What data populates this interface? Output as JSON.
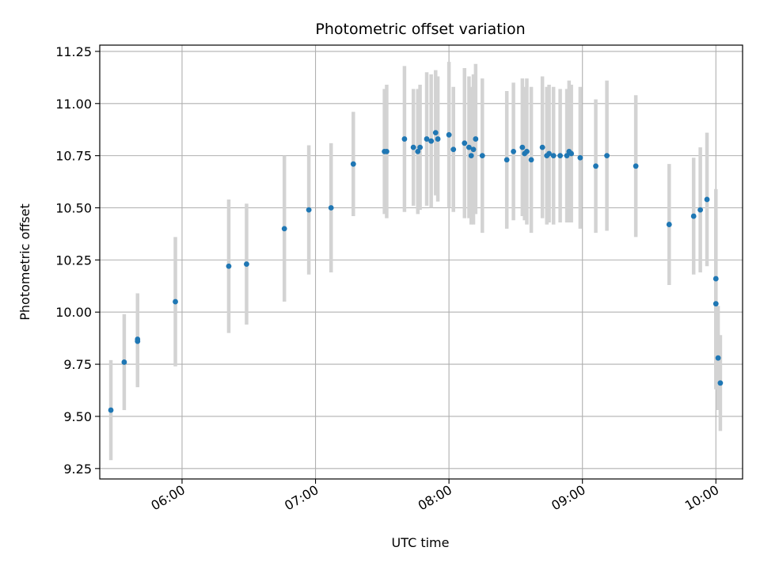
{
  "chart_data": {
    "type": "scatter",
    "title": "Photometric offset variation",
    "xlabel": "UTC time",
    "ylabel": "Photometric offset",
    "x_tick_labels": [
      "06:00",
      "07:00",
      "08:00",
      "09:00",
      "10:00"
    ],
    "x_tick_values": [
      "06:00",
      "07:00",
      "08:00",
      "09:00",
      "10:00"
    ],
    "y_tick_labels": [
      "9.25",
      "9.50",
      "9.75",
      "10.00",
      "10.25",
      "10.50",
      "10.75",
      "11.00",
      "11.25"
    ],
    "y_tick_values": [
      9.25,
      9.5,
      9.75,
      10.0,
      10.25,
      10.5,
      10.75,
      11.0,
      11.25
    ],
    "xlim": [
      "05:23",
      "10:12"
    ],
    "ylim": [
      9.2,
      11.28
    ],
    "grid": true,
    "colors": {
      "points": "#1f77b4",
      "error_bars": "#d3d3d3",
      "grid": "#b0b0b0"
    },
    "series": [
      {
        "x": [
          "05:28",
          "05:34",
          "05:40",
          "05:40",
          "05:57",
          "06:21",
          "06:29",
          "06:46",
          "06:57",
          "07:07",
          "07:17",
          "07:31",
          "07:32",
          "07:40",
          "07:44",
          "07:46",
          "07:47",
          "07:50",
          "07:52",
          "07:54",
          "07:55",
          "08:00",
          "08:02",
          "08:07",
          "08:09",
          "08:10",
          "08:11",
          "08:12",
          "08:15",
          "08:26",
          "08:29",
          "08:33",
          "08:34",
          "08:35",
          "08:37",
          "08:42",
          "08:44",
          "08:45",
          "08:47",
          "08:50",
          "08:53",
          "08:54",
          "08:55",
          "08:59",
          "09:06",
          "09:11",
          "09:24",
          "09:39",
          "09:50",
          "09:53",
          "09:56",
          "10:00",
          "10:00",
          "10:01",
          "10:02"
        ],
        "y": [
          9.53,
          9.76,
          9.86,
          9.87,
          10.05,
          10.22,
          10.23,
          10.4,
          10.49,
          10.5,
          10.71,
          10.77,
          10.77,
          10.83,
          10.79,
          10.77,
          10.79,
          10.83,
          10.82,
          10.86,
          10.83,
          10.85,
          10.78,
          10.81,
          10.79,
          10.75,
          10.78,
          10.83,
          10.75,
          10.73,
          10.77,
          10.79,
          10.76,
          10.77,
          10.73,
          10.79,
          10.75,
          10.76,
          10.75,
          10.75,
          10.75,
          10.77,
          10.76,
          10.74,
          10.7,
          10.75,
          10.7,
          10.42,
          10.46,
          10.49,
          10.54,
          10.16,
          10.04,
          9.78,
          9.66
        ],
        "yerr": [
          0.24,
          0.23,
          0.22,
          0.22,
          0.31,
          0.32,
          0.29,
          0.35,
          0.31,
          0.31,
          0.25,
          0.3,
          0.32,
          0.35,
          0.28,
          0.3,
          0.3,
          0.32,
          0.32,
          0.3,
          0.3,
          0.35,
          0.3,
          0.36,
          0.34,
          0.33,
          0.36,
          0.36,
          0.37,
          0.33,
          0.33,
          0.33,
          0.32,
          0.35,
          0.35,
          0.34,
          0.33,
          0.33,
          0.33,
          0.32,
          0.32,
          0.34,
          0.33,
          0.34,
          0.32,
          0.36,
          0.34,
          0.29,
          0.28,
          0.3,
          0.32,
          0.43,
          0.41,
          0.25,
          0.23
        ]
      }
    ]
  }
}
